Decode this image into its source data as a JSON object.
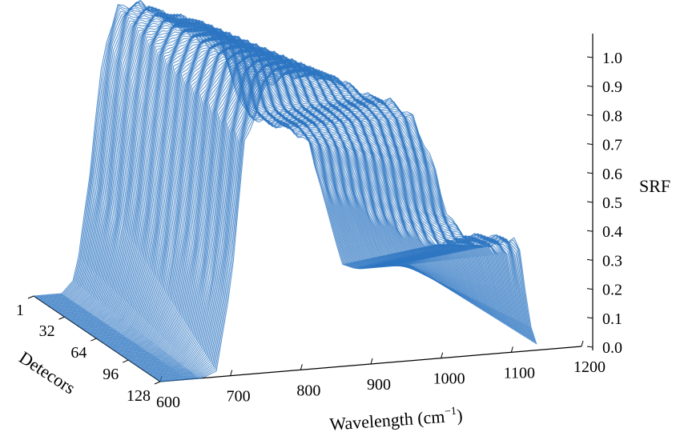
{
  "chart_data": {
    "type": "line",
    "projection": "3d-waterfall",
    "title": "",
    "xlabel": "Wavelength (cm",
    "xlabel_sup": "−1",
    "xlabel_close": ")",
    "ylabel": "Detecors",
    "zlabel": "SRF",
    "xlim": [
      600,
      1200
    ],
    "ylim": [
      1,
      128
    ],
    "zlim": [
      0,
      1.0
    ],
    "x_ticks": [
      "600",
      "700",
      "800",
      "900",
      "1000",
      "1100",
      "1200"
    ],
    "y_ticks": [
      "1",
      "32",
      "64",
      "96",
      "128"
    ],
    "z_ticks": [
      "0.0",
      "0.1",
      "0.2",
      "0.3",
      "0.4",
      "0.5",
      "0.6",
      "0.7",
      "0.8",
      "0.9",
      "1.0"
    ],
    "grid": false,
    "line_color": "#2e75c2",
    "detector_count": 128,
    "srf_profile": {
      "wavelength": [
        600,
        640,
        660,
        680,
        700,
        720,
        750,
        780,
        810,
        840,
        860,
        880,
        900,
        930,
        960,
        990,
        1010,
        1030,
        1040,
        1060,
        1080,
        1100,
        1110,
        1120,
        1130,
        1140
      ],
      "srf_first_detector": [
        0.0,
        0.0,
        0.05,
        0.4,
        0.82,
        0.95,
        0.96,
        0.92,
        0.9,
        0.87,
        0.82,
        0.7,
        0.56,
        0.52,
        0.5,
        0.45,
        0.28,
        0.1,
        0.02,
        0.0,
        0.0,
        0.0,
        0.0,
        0.0,
        0.0,
        0.0
      ],
      "srf_last_detector": [
        0.0,
        0.0,
        0.0,
        0.02,
        0.3,
        0.78,
        0.97,
        1.0,
        0.99,
        0.98,
        0.96,
        0.93,
        0.9,
        0.88,
        0.82,
        0.65,
        0.47,
        0.42,
        0.4,
        0.4,
        0.39,
        0.38,
        0.37,
        0.2,
        0.05,
        0.0
      ]
    }
  }
}
